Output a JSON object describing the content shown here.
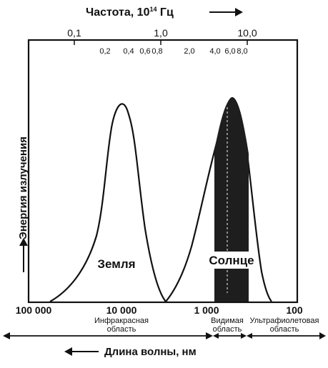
{
  "top_axis": {
    "title_prefix": "Частота, 10",
    "title_exp": "14",
    "title_suffix": " Гц",
    "major_ticks": [
      "0,1",
      "1,0",
      "10,0"
    ],
    "minor_ticks": [
      "0,2",
      "0,4",
      "0,6",
      "0,8",
      "2,0",
      "4,0",
      "6,0",
      "8,0"
    ]
  },
  "y_axis_label": "Энергия излучения",
  "bottom_axis": {
    "ticks": [
      "100 000",
      "10 000",
      "1 000",
      "100"
    ],
    "title": "Длина волны, нм"
  },
  "regions": {
    "infrared_line1": "Инфракрасная",
    "infrared_line2": "область",
    "visible_line1": "Видимая",
    "visible_line2": "область",
    "ultraviolet_line1": "Ультрафиолетовая",
    "ultraviolet_line2": "область"
  },
  "curves": {
    "earth_label": "Земля",
    "sun_label": "Солнце"
  },
  "colors": {
    "ink": "#111111",
    "visible_band": "#1e1e1e",
    "background": "#ffffff"
  }
}
